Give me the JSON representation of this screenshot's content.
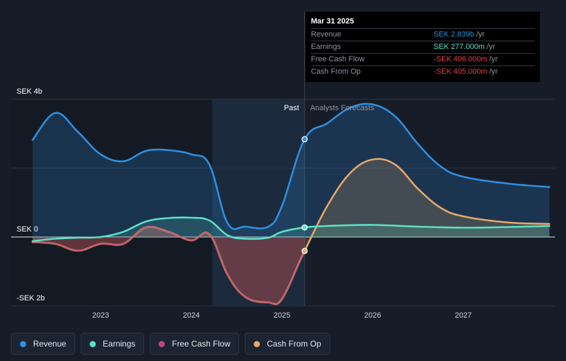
{
  "chart_data": {
    "type": "area",
    "y_axis_labels": [
      "SEK 4b",
      "SEK 0",
      "-SEK 2b"
    ],
    "ylim": [
      -2.0,
      4.0
    ],
    "x_ticks": [
      "2023",
      "2024",
      "2025",
      "2026",
      "2027"
    ],
    "zone_labels": {
      "past": "Past",
      "forecast": "Analysts Forecasts"
    },
    "series": [
      {
        "name": "Revenue",
        "color": "#2f8fe0",
        "points": [
          [
            2022.25,
            2.82
          ],
          [
            2022.5,
            3.6
          ],
          [
            2022.75,
            3.05
          ],
          [
            2023.0,
            2.4
          ],
          [
            2023.25,
            2.2
          ],
          [
            2023.5,
            2.5
          ],
          [
            2023.75,
            2.52
          ],
          [
            2024.0,
            2.4
          ],
          [
            2024.2,
            2.1
          ],
          [
            2024.4,
            0.4
          ],
          [
            2024.6,
            0.3
          ],
          [
            2024.85,
            0.3
          ],
          [
            2025.0,
            0.9
          ],
          [
            2025.25,
            2.839
          ],
          [
            2025.5,
            3.3
          ],
          [
            2025.75,
            3.75
          ],
          [
            2026.0,
            3.85
          ],
          [
            2026.25,
            3.5
          ],
          [
            2026.5,
            2.7
          ],
          [
            2026.75,
            2.05
          ],
          [
            2027.0,
            1.75
          ],
          [
            2027.5,
            1.55
          ],
          [
            2027.95,
            1.45
          ]
        ]
      },
      {
        "name": "Earnings",
        "color": "#5ee0c8",
        "points": [
          [
            2022.25,
            -0.12
          ],
          [
            2022.5,
            -0.05
          ],
          [
            2022.75,
            -0.02
          ],
          [
            2023.0,
            0.0
          ],
          [
            2023.25,
            0.15
          ],
          [
            2023.5,
            0.45
          ],
          [
            2023.75,
            0.55
          ],
          [
            2024.0,
            0.56
          ],
          [
            2024.2,
            0.48
          ],
          [
            2024.4,
            0.05
          ],
          [
            2024.6,
            -0.05
          ],
          [
            2024.85,
            -0.02
          ],
          [
            2025.0,
            0.15
          ],
          [
            2025.25,
            0.277
          ],
          [
            2025.5,
            0.32
          ],
          [
            2026.0,
            0.35
          ],
          [
            2026.5,
            0.3
          ],
          [
            2027.0,
            0.27
          ],
          [
            2027.5,
            0.29
          ],
          [
            2027.95,
            0.32
          ]
        ]
      },
      {
        "name": "Free Cash Flow",
        "color": "#c0467a",
        "points": [
          [
            2022.25,
            -0.15
          ],
          [
            2022.5,
            -0.2
          ],
          [
            2022.75,
            -0.4
          ],
          [
            2023.0,
            -0.2
          ],
          [
            2023.25,
            -0.2
          ],
          [
            2023.5,
            0.28
          ],
          [
            2023.75,
            0.15
          ],
          [
            2024.0,
            -0.1
          ],
          [
            2024.2,
            0.08
          ],
          [
            2024.4,
            -1.1
          ],
          [
            2024.6,
            -1.75
          ],
          [
            2024.85,
            -1.9
          ],
          [
            2025.0,
            -1.8
          ],
          [
            2025.25,
            -0.406
          ]
        ]
      },
      {
        "name": "Cash From Op",
        "color": "#e8a866",
        "points": [
          [
            2022.25,
            -0.15
          ],
          [
            2022.5,
            -0.2
          ],
          [
            2022.75,
            -0.4
          ],
          [
            2023.0,
            -0.2
          ],
          [
            2023.25,
            -0.2
          ],
          [
            2023.5,
            0.28
          ],
          [
            2023.75,
            0.15
          ],
          [
            2024.0,
            -0.1
          ],
          [
            2024.2,
            0.08
          ],
          [
            2024.4,
            -1.1
          ],
          [
            2024.6,
            -1.75
          ],
          [
            2024.85,
            -1.9
          ],
          [
            2025.0,
            -1.8
          ],
          [
            2025.25,
            -0.405
          ],
          [
            2025.5,
            0.9
          ],
          [
            2025.75,
            1.85
          ],
          [
            2026.0,
            2.25
          ],
          [
            2026.25,
            2.1
          ],
          [
            2026.5,
            1.4
          ],
          [
            2026.75,
            0.85
          ],
          [
            2027.0,
            0.6
          ],
          [
            2027.5,
            0.42
          ],
          [
            2027.95,
            0.38
          ]
        ]
      }
    ],
    "past_forecast_split": 2025.25,
    "highlight_range": [
      2024.23,
      2025.25
    ]
  },
  "tooltip": {
    "date": "Mar 31 2025",
    "rows": [
      {
        "label": "Revenue",
        "value": "SEK 2.839b",
        "unit": " /yr",
        "color": "#2f8fe0"
      },
      {
        "label": "Earnings",
        "value": "SEK 277.000m",
        "unit": " /yr",
        "color": "#5ee0c8"
      },
      {
        "label": "Free Cash Flow",
        "value": "-SEK 406.000m",
        "unit": " /yr",
        "color": "#e0424a"
      },
      {
        "label": "Cash From Op",
        "value": "-SEK 405.000m",
        "unit": " /yr",
        "color": "#e0424a"
      }
    ]
  },
  "legend": [
    {
      "label": "Revenue",
      "color": "#2f8fe0"
    },
    {
      "label": "Earnings",
      "color": "#5ee0c8"
    },
    {
      "label": "Free Cash Flow",
      "color": "#c0467a"
    },
    {
      "label": "Cash From Op",
      "color": "#e8a866"
    }
  ]
}
